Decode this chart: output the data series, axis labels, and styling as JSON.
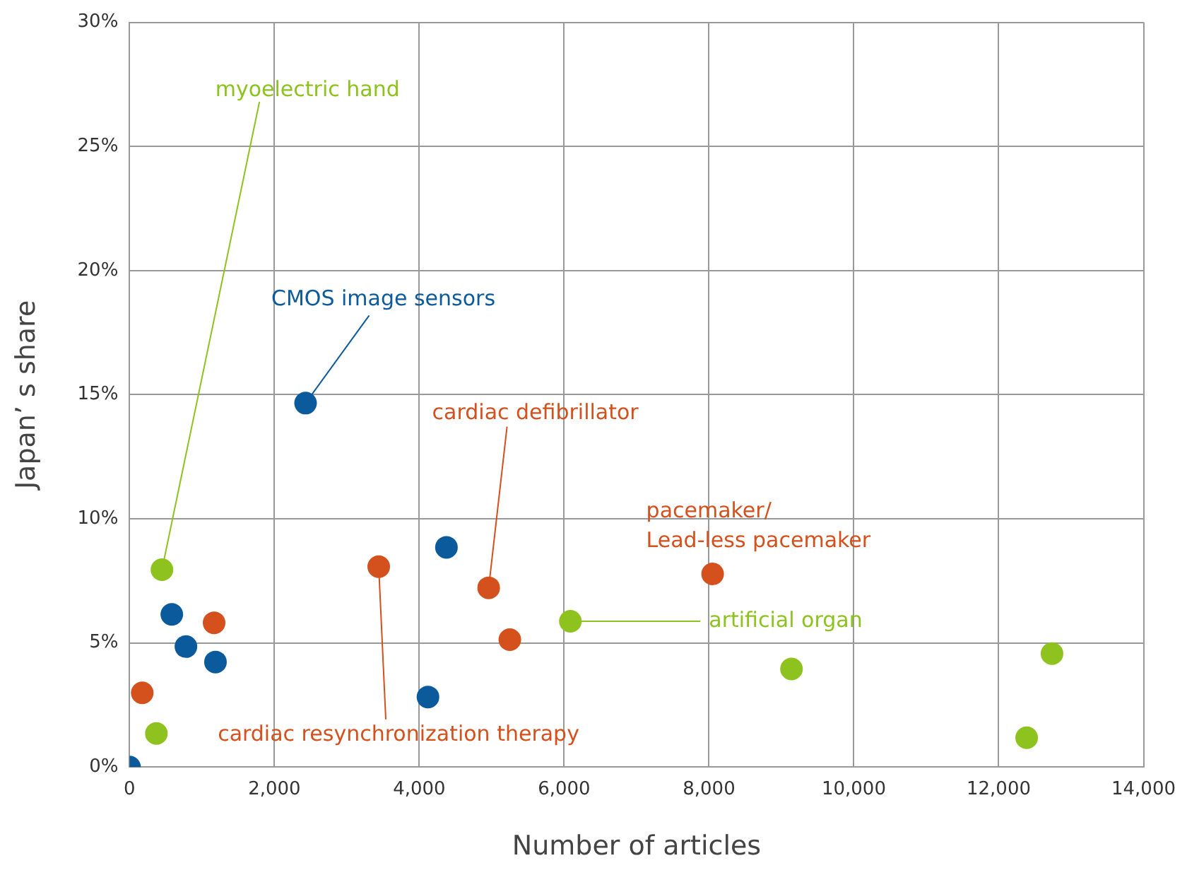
{
  "chart_data": {
    "type": "scatter",
    "xlabel": "Number of articles",
    "ylabel": "Japan’ s share",
    "series": [
      {
        "color": "#0b5a9c",
        "x": [
          0,
          583,
          778,
          1186,
          2430,
          4120,
          4375
        ],
        "values": [
          0,
          6.15,
          4.85,
          4.23,
          14.66,
          2.82,
          8.85
        ]
      },
      {
        "color": "#d4501c",
        "x": [
          175,
          1167,
          3440,
          4958,
          5250,
          8050
        ],
        "values": [
          2.99,
          5.81,
          8.07,
          7.22,
          5.13,
          7.78
        ]
      },
      {
        "color": "#8dc21f",
        "x": [
          370,
          447,
          6086,
          9139,
          12386,
          12736
        ],
        "values": [
          1.35,
          7.95,
          5.87,
          3.95,
          1.18,
          4.57
        ]
      }
    ],
    "xlim": [
      0,
      14000
    ],
    "xticks": [
      0,
      {
        "value": 2000,
        "label": "2,000"
      },
      {
        "value": 4000,
        "label": "4,000"
      },
      {
        "value": 6000,
        "label": "6,000"
      },
      {
        "value": 8000,
        "label": "8,000"
      },
      {
        "value": 10000,
        "label": "10,000"
      },
      {
        "value": 12000,
        "label": "12,000"
      },
      {
        "value": 14000,
        "label": "14,000"
      }
    ],
    "ylim": [
      0,
      30
    ],
    "yticks": [
      {
        "value": 0,
        "label": "0%"
      },
      {
        "value": 5,
        "label": "5%"
      },
      {
        "value": 10,
        "label": "10%"
      },
      {
        "value": 15,
        "label": "15%"
      },
      {
        "value": 20,
        "label": "20%"
      },
      {
        "value": 25,
        "label": "25%"
      },
      {
        "value": 30,
        "label": "30%"
      }
    ],
    "annotations": [
      {
        "text": "myoelectric hand",
        "x": 447,
        "y": 7.95
      },
      {
        "text": "CMOS image sensors",
        "x": 2430,
        "y": 14.66
      },
      {
        "text": "cardiac defibrillator",
        "x": 4958,
        "y": 7.22
      },
      {
        "text": "pacemaker/\nLead-less pacemaker",
        "x": 8050,
        "y": 7.78
      },
      {
        "text": "artificial organ",
        "x": 6086,
        "y": 5.87
      },
      {
        "text": "cardiac resynchronization therapy",
        "x": 3440,
        "y": 8.07
      }
    ],
    "grid": true,
    "legend": false,
    "marker": "circle"
  }
}
